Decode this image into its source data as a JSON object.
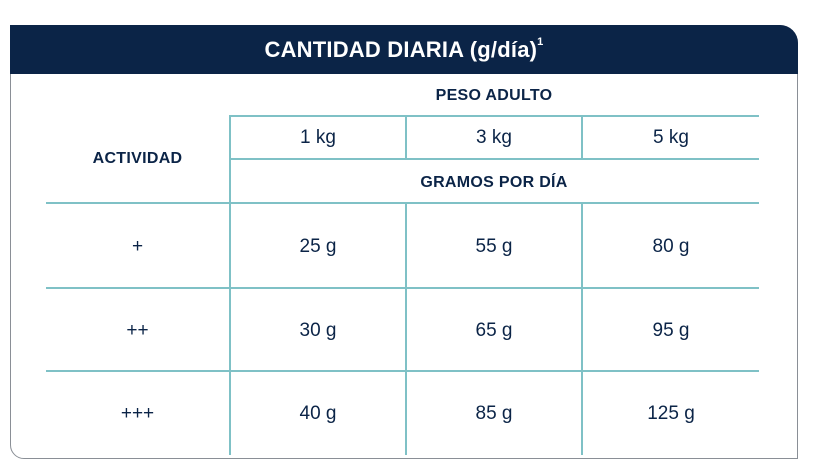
{
  "table": {
    "title": "CANTIDAD DIARIA (g/día)",
    "title_sup": "1",
    "col_group_header": "PESO ADULTO",
    "row_header": "ACTIVIDAD",
    "sub_header": "GRAMOS POR DÍA",
    "weights": [
      "1 kg",
      "3 kg",
      "5 kg"
    ],
    "rows": [
      {
        "activity": "+",
        "values": [
          "25 g",
          "55 g",
          "80 g"
        ]
      },
      {
        "activity": "++",
        "values": [
          "30 g",
          "65 g",
          "95 g"
        ]
      },
      {
        "activity": "+++",
        "values": [
          "40 g",
          "85 g",
          "125 g"
        ]
      }
    ]
  },
  "colors": {
    "banner": "#0b2447",
    "grid": "#7fc1c6",
    "text": "#0b2447"
  }
}
